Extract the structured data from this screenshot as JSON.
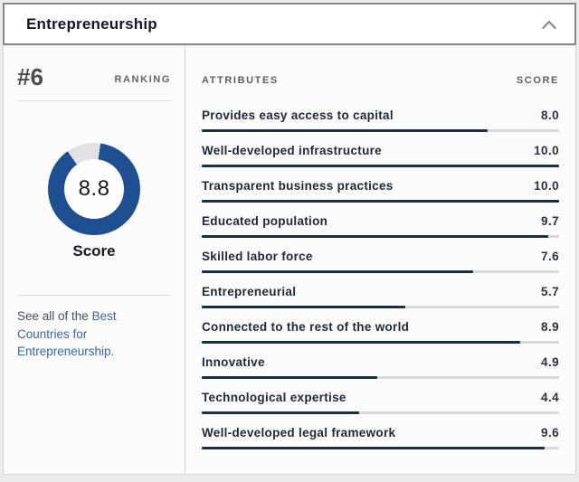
{
  "header": {
    "title": "Entrepreneurship",
    "collapse_icon": "chevron-up-icon"
  },
  "ranking": {
    "rank": "#6",
    "label": "RANKING"
  },
  "score_donut": {
    "score": "8.8",
    "max": 10,
    "label": "Score"
  },
  "see_all": {
    "prefix": "See all of the ",
    "link": "Best Countries for Entrepreneurship."
  },
  "attributes_table": {
    "col_attribute": "ATTRIBUTES",
    "col_score": "SCORE",
    "rows": [
      {
        "label": "Provides easy access to capital",
        "score": "8.0"
      },
      {
        "label": "Well-developed infrastructure",
        "score": "10.0"
      },
      {
        "label": "Transparent business practices",
        "score": "10.0"
      },
      {
        "label": "Educated population",
        "score": "9.7"
      },
      {
        "label": "Skilled labor force",
        "score": "7.6"
      },
      {
        "label": "Entrepreneurial",
        "score": "5.7"
      },
      {
        "label": "Connected to the rest of the world",
        "score": "8.9"
      },
      {
        "label": "Innovative",
        "score": "4.9"
      },
      {
        "label": "Technological expertise",
        "score": "4.4"
      },
      {
        "label": "Well-developed legal framework",
        "score": "9.6"
      }
    ]
  },
  "colors": {
    "accent_blue": "#1d4f91",
    "donut_track": "#e2e2e4",
    "bar_fill": "#1d2c44",
    "bar_track": "#d9d9db",
    "link_blue": "#36679e"
  }
}
